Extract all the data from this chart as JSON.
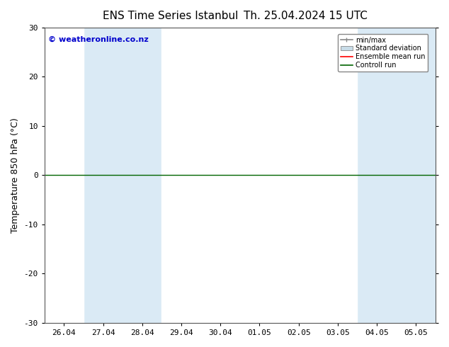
{
  "title": "ENS Time Series Istanbul",
  "title2": "Th. 25.04.2024 15 UTC",
  "ylabel": "Temperature 850 hPa (°C)",
  "ylim": [
    -30,
    30
  ],
  "yticks": [
    -30,
    -20,
    -10,
    0,
    10,
    20,
    30
  ],
  "x_labels": [
    "26.04",
    "27.04",
    "28.04",
    "29.04",
    "30.04",
    "01.05",
    "02.05",
    "03.05",
    "04.05",
    "05.05"
  ],
  "n_ticks": 10,
  "bg_color": "#ffffff",
  "plot_bg_color": "#daeaf5",
  "white_band_positions": [
    0,
    3,
    4,
    5,
    6,
    7
  ],
  "band_color": "#daeaf5",
  "white_color": "#ffffff",
  "zero_line_color": "#006400",
  "legend_entries": [
    "min/max",
    "Standard deviation",
    "Ensemble mean run",
    "Controll run"
  ],
  "legend_line_colors": [
    "#888888",
    "#aaaaaa",
    "#ff0000",
    "#006400"
  ],
  "watermark": "© weatheronline.co.nz",
  "watermark_color": "#0000cc",
  "title_fontsize": 11,
  "tick_fontsize": 8,
  "ylabel_fontsize": 9,
  "spine_color": "#555555"
}
